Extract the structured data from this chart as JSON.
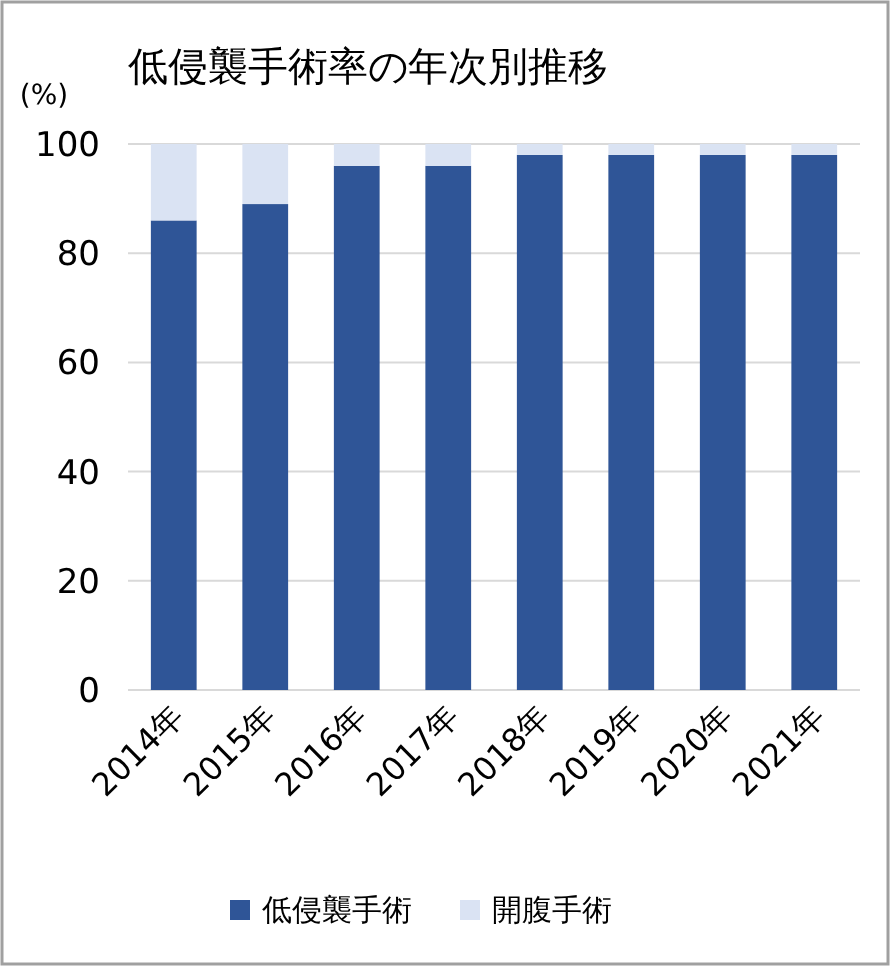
{
  "chart_data": {
    "type": "bar",
    "title": "低侵襲手術率の年次別推移",
    "ylabel": "(%)",
    "stacked": true,
    "categories": [
      "2014年",
      "2015年",
      "2016年",
      "2017年",
      "2018年",
      "2019年",
      "2020年",
      "2021年"
    ],
    "series": [
      {
        "name": "低侵襲手術",
        "color": "#2f5597",
        "values": [
          86,
          89,
          96,
          96,
          98,
          98,
          98,
          98
        ]
      },
      {
        "name": "開腹手術",
        "color": "#dae3f3",
        "values": [
          14,
          11,
          4,
          4,
          2,
          2,
          2,
          2
        ]
      }
    ],
    "ylim": [
      0,
      100
    ],
    "yticks": [
      0,
      20,
      40,
      60,
      80,
      100
    ],
    "grid": "y",
    "legend": "bottom"
  }
}
